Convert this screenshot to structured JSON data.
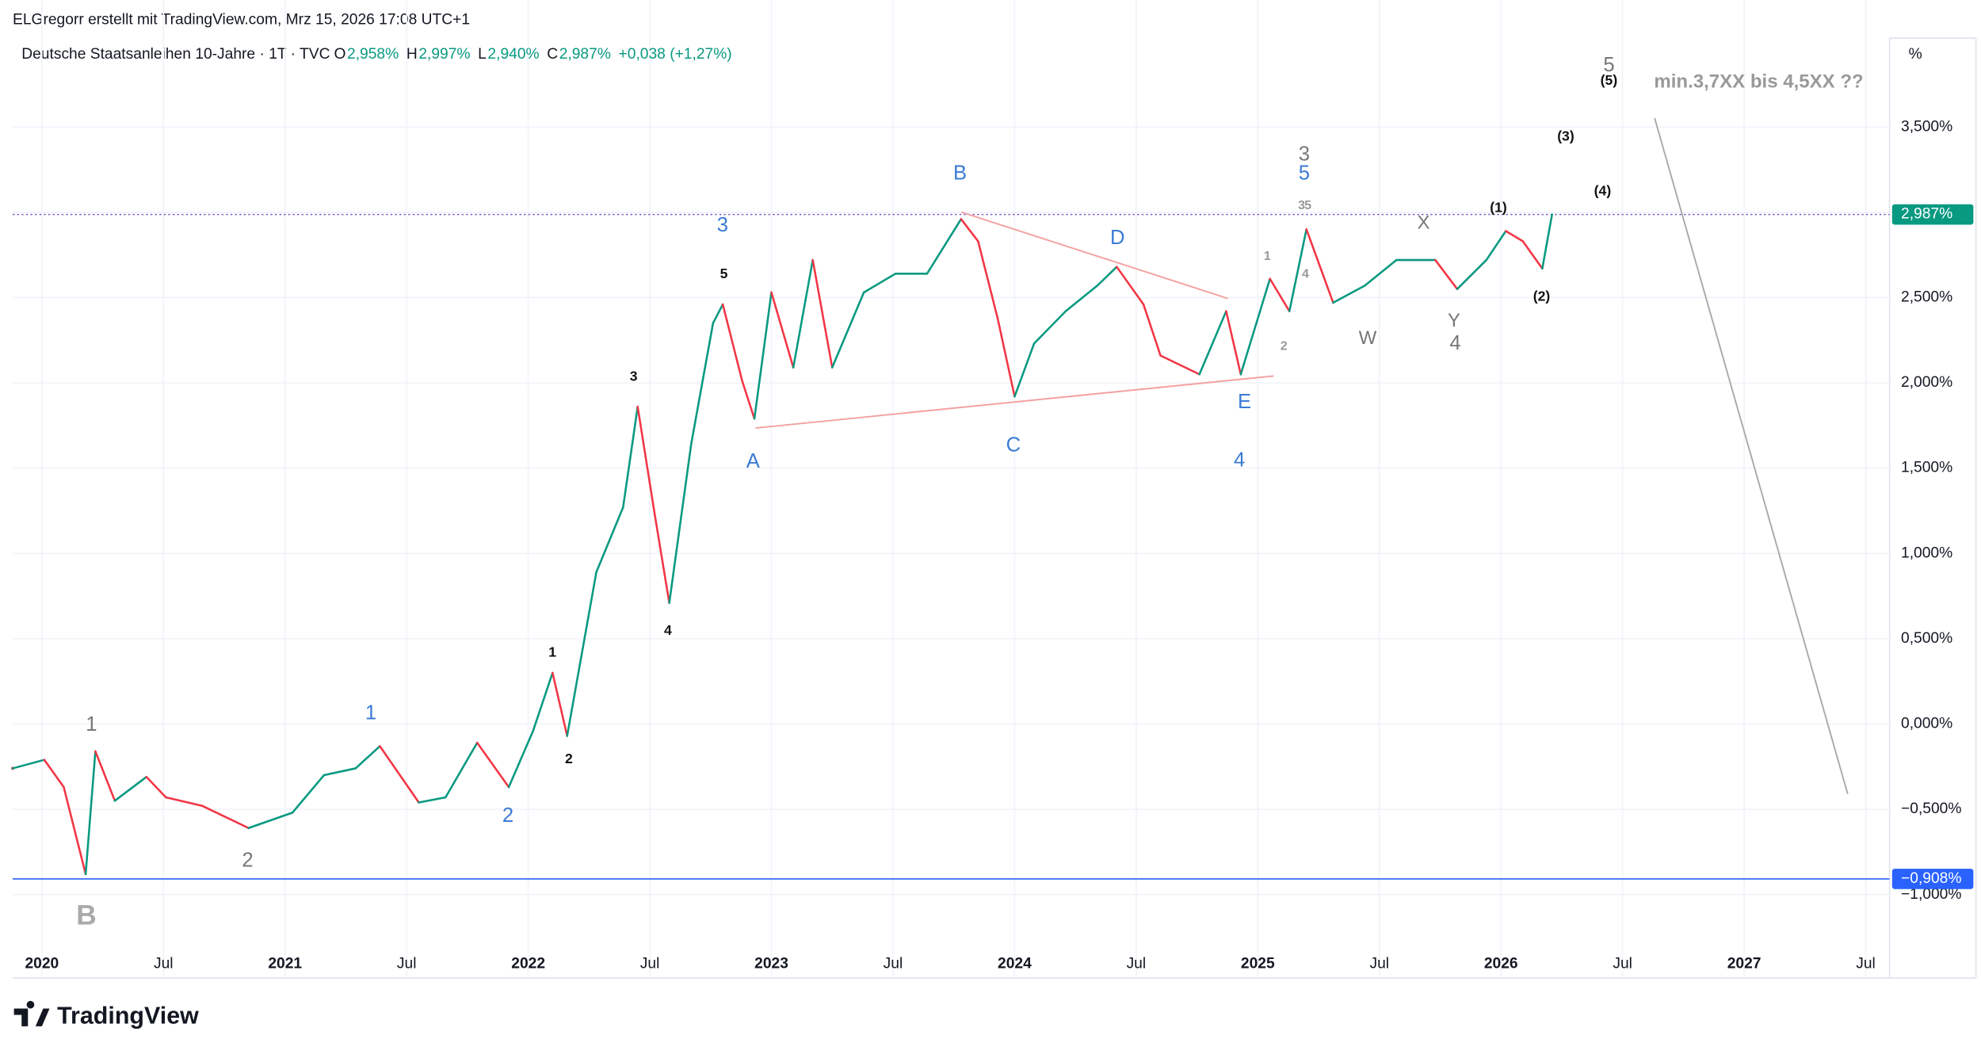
{
  "header": {
    "attribution": "ELGregorr erstellt mit TradingView.com, Mrz 15, 2026 17:08 UTC+1",
    "symbol": "Deutsche Staatsanleihen 10-Jahre · 1T · TVC",
    "ohlc": [
      {
        "key": "O",
        "value": "2,958%"
      },
      {
        "key": "H",
        "value": "2,997%"
      },
      {
        "key": "L",
        "value": "2,940%"
      },
      {
        "key": "C",
        "value": "2,987%"
      }
    ],
    "change": "+0,038 (+1,27%)",
    "axis_unit": "%",
    "logo": "TradingView"
  },
  "chart_data": {
    "type": "line",
    "series": [
      {
        "name": "Deutsche Staatsanleihen 10-Jahre",
        "up_color": "#089981",
        "down_color": "#f23645",
        "x": [
          2019.88,
          2020.01,
          2020.09,
          2020.18,
          2020.22,
          2020.3,
          2020.43,
          2020.51,
          2020.66,
          2020.85,
          2021.03,
          2021.16,
          2021.29,
          2021.39,
          2021.55,
          2021.66,
          2021.79,
          2021.92,
          2022.02,
          2022.1,
          2022.16,
          2022.28,
          2022.39,
          2022.45,
          2022.52,
          2022.58,
          2022.67,
          2022.76,
          2022.8,
          2022.88,
          2022.93,
          2023.0,
          2023.09,
          2023.17,
          2023.25,
          2023.38,
          2023.51,
          2023.64,
          2023.78,
          2023.85,
          2023.93,
          2024.0,
          2024.08,
          2024.21,
          2024.34,
          2024.42,
          2024.53,
          2024.6,
          2024.76,
          2024.87,
          2024.93,
          2025.05,
          2025.13,
          2025.2,
          2025.31,
          2025.44,
          2025.57,
          2025.73,
          2025.82,
          2025.94,
          2026.02,
          2026.09,
          2026.17,
          2026.21
        ],
        "values": [
          -0.26,
          -0.21,
          -0.37,
          -0.88,
          -0.16,
          -0.45,
          -0.31,
          -0.43,
          -0.48,
          -0.61,
          -0.52,
          -0.3,
          -0.26,
          -0.13,
          -0.46,
          -0.43,
          -0.11,
          -0.37,
          -0.04,
          0.3,
          -0.07,
          0.89,
          1.27,
          1.86,
          1.23,
          0.71,
          1.64,
          2.35,
          2.46,
          2.01,
          1.79,
          2.53,
          2.09,
          2.72,
          2.09,
          2.53,
          2.64,
          2.64,
          2.96,
          2.83,
          2.38,
          1.92,
          2.23,
          2.42,
          2.57,
          2.68,
          2.46,
          2.16,
          2.05,
          2.42,
          2.05,
          2.61,
          2.42,
          2.9,
          2.47,
          2.57,
          2.72,
          2.72,
          2.55,
          2.72,
          2.89,
          2.83,
          2.67,
          2.987
        ]
      }
    ],
    "xlim": [
      2019.88,
      2027.598
    ],
    "xticks": [
      2020,
      {
        "value": 2020.5,
        "label": "Jul"
      },
      2021,
      {
        "value": 2021.5,
        "label": "Jul"
      },
      2022,
      {
        "value": 2022.5,
        "label": "Jul"
      },
      2023,
      {
        "value": 2023.5,
        "label": "Jul"
      },
      2024,
      {
        "value": 2024.5,
        "label": "Jul"
      },
      2025,
      {
        "value": 2025.5,
        "label": "Jul"
      },
      2026,
      {
        "value": 2026.5,
        "label": "Jul"
      },
      2027,
      {
        "value": 2027.5,
        "label": "Jul"
      }
    ],
    "ylim": [
      -1.303,
      4.021
    ],
    "yticks": [
      {
        "value": -1,
        "label": "−1,000%"
      },
      {
        "value": -0.5,
        "label": "−0,500%"
      },
      {
        "value": 0,
        "label": "0,000%"
      },
      {
        "value": 0.5,
        "label": "0,500%"
      },
      {
        "value": 1,
        "label": "1,000%"
      },
      {
        "value": 1.5,
        "label": "1,500%"
      },
      {
        "value": 2,
        "label": "2,000%"
      },
      {
        "value": 2.5,
        "label": "2,500%"
      },
      {
        "value": 3,
        "label": "3,000%"
      },
      {
        "value": 3.5,
        "label": "3,500%"
      }
    ],
    "grid": true,
    "price_lines": [
      {
        "value": 2.987,
        "label": "2,987%",
        "color": "#7e57c2",
        "tag_color": "#089981",
        "style": "dotted"
      },
      {
        "value": -0.908,
        "label": "−0,908%",
        "color": "#2962ff",
        "tag_color": "#2962ff",
        "style": "solid"
      }
    ],
    "annotations": [
      {
        "text": "1",
        "color": "#777"
      },
      {
        "text": "2",
        "color": "#777"
      },
      {
        "text": "B",
        "color": "#aaa"
      },
      {
        "text": "3",
        "color": "#777"
      },
      {
        "text": "4",
        "color": "#777"
      },
      {
        "text": "W",
        "color": "#777"
      },
      {
        "text": "X",
        "color": "#777"
      },
      {
        "text": "Y",
        "color": "#777"
      },
      {
        "text": "5",
        "color": "#777"
      },
      {
        "text": "1",
        "color": "#3a7bd5"
      },
      {
        "text": "2",
        "color": "#3a7bd5"
      },
      {
        "text": "3",
        "color": "#3a7bd5"
      },
      {
        "text": "A",
        "color": "#3a7bd5"
      },
      {
        "text": "B",
        "color": "#3a7bd5"
      },
      {
        "text": "C",
        "color": "#3a7bd5"
      },
      {
        "text": "D",
        "color": "#3a7bd5"
      },
      {
        "text": "E",
        "color": "#3a7bd5"
      },
      {
        "text": "4",
        "color": "#3a7bd5"
      },
      {
        "text": "5",
        "color": "#3a7bd5"
      },
      {
        "text": "1",
        "color": "#111"
      },
      {
        "text": "2",
        "color": "#111"
      },
      {
        "text": "3",
        "color": "#111"
      },
      {
        "text": "4",
        "color": "#111"
      },
      {
        "text": "5",
        "color": "#111"
      },
      {
        "text": "(1)",
        "color": "#111"
      },
      {
        "text": "(2)",
        "color": "#111"
      },
      {
        "text": "(3)",
        "color": "#111"
      },
      {
        "text": "(4)",
        "color": "#111"
      },
      {
        "text": "(5)",
        "color": "#111"
      },
      {
        "text": "1",
        "color": "#999"
      },
      {
        "text": "2",
        "color": "#999"
      },
      {
        "text": "3",
        "color": "#999"
      },
      {
        "text": "5",
        "color": "#999"
      },
      {
        "text": "4",
        "color": "#999"
      },
      {
        "text": "min.3,7XX bis 4,5XX ??",
        "color": "#999"
      }
    ]
  }
}
